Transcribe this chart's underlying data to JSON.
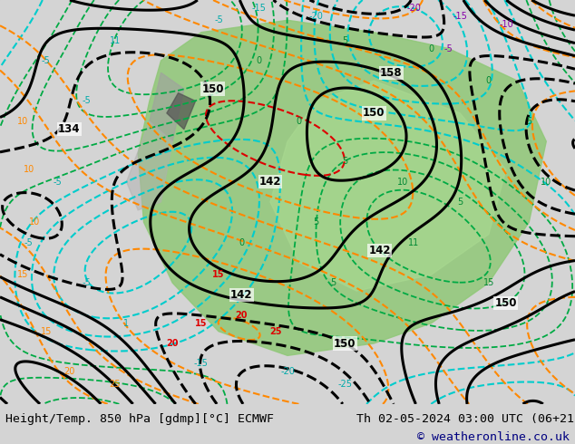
{
  "title_left": "Height/Temp. 850 hPa [gdmp][°C] ECMWF",
  "title_right": "Th 02-05-2024 03:00 UTC (06+21)",
  "copyright": "© weatheronline.co.uk",
  "bg_color": "#d0d0d0",
  "map_bg": "#ffffff",
  "fig_width": 6.34,
  "fig_height": 4.9,
  "dpi": 100,
  "bottom_bar_color": "#e8e8e8",
  "title_fontsize": 9.5,
  "copyright_color": "#000080",
  "copyright_fontsize": 9.5
}
